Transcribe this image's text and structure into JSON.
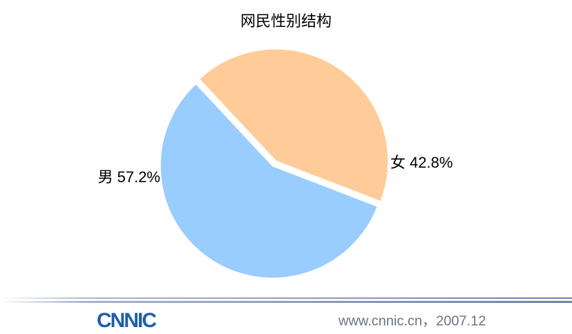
{
  "chart_data": {
    "type": "pie",
    "title": "网民性别结构",
    "categories": [
      "女",
      "男"
    ],
    "values": [
      42.8,
      57.2
    ],
    "value_labels": [
      "42.8%",
      "57.2%"
    ],
    "colors": [
      "#ffcc99",
      "#99ccff"
    ]
  },
  "footer": {
    "logo": "CNNIC",
    "source": "www.cnnic.cn，2007.12"
  }
}
